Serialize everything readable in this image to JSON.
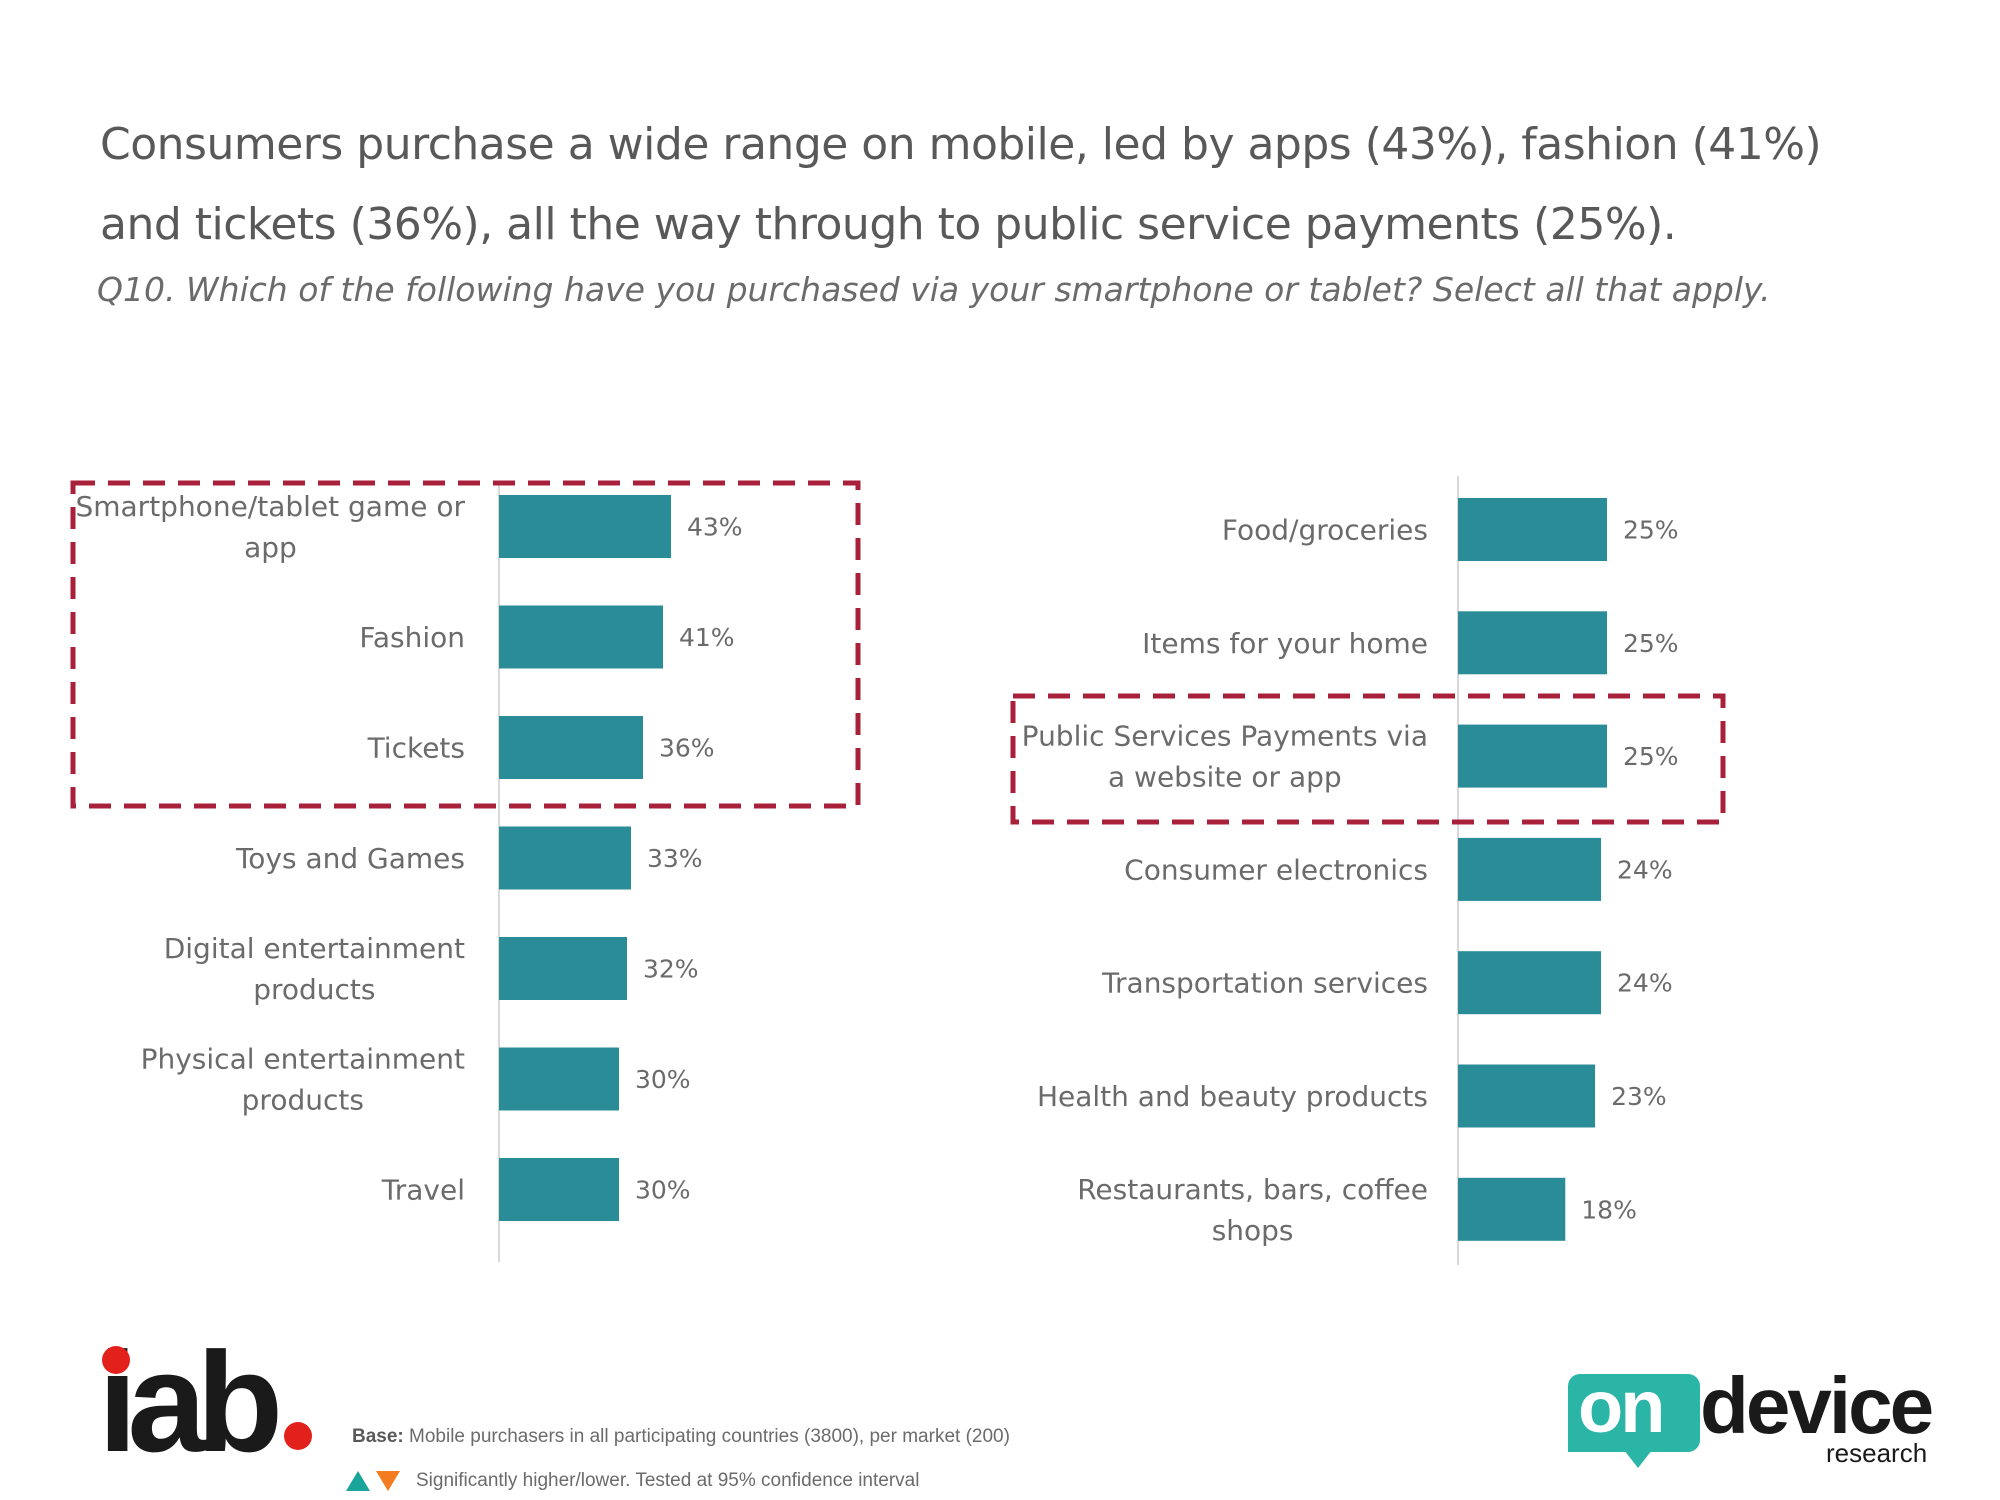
{
  "header": {
    "title_line1": "Consumers purchase a wide range on mobile, led by apps (43%), fashion (41%)",
    "title_line2": "and tickets (36%), all the way through to public service payments (25%).",
    "subtitle": "Q10. Which of the following have you purchased via your smartphone or tablet? Select all that apply."
  },
  "chart_data": [
    {
      "type": "bar",
      "orientation": "horizontal",
      "categories": [
        "Smartphone/tablet game or app",
        "Fashion",
        "Tickets",
        "Toys and Games",
        "Digital entertainment products",
        "Physical entertainment products",
        "Travel"
      ],
      "category_lines": [
        [
          "Smartphone/tablet game or",
          "app"
        ],
        [
          "Fashion"
        ],
        [
          "Tickets"
        ],
        [
          "Toys and Games"
        ],
        [
          "Digital entertainment",
          "products"
        ],
        [
          "Physical entertainment",
          "products"
        ],
        [
          "Travel"
        ]
      ],
      "values": [
        43,
        41,
        36,
        33,
        32,
        30,
        30
      ],
      "data_labels": [
        "43%",
        "41%",
        "36%",
        "33%",
        "32%",
        "30%",
        "30%"
      ],
      "highlighted": [
        "Smartphone/tablet game or app",
        "Fashion",
        "Tickets"
      ],
      "unit": "%",
      "grid": false
    },
    {
      "type": "bar",
      "orientation": "horizontal",
      "categories": [
        "Food/groceries",
        "Items for your home",
        "Public Services Payments via a website or app",
        "Consumer electronics",
        "Transportation services",
        "Health and beauty products",
        "Restaurants, bars, coffee shops"
      ],
      "category_lines": [
        [
          "Food/groceries"
        ],
        [
          "Items for your home"
        ],
        [
          "Public Services Payments via",
          "a website or app"
        ],
        [
          "Consumer electronics"
        ],
        [
          "Transportation services"
        ],
        [
          "Health and beauty products"
        ],
        [
          "Restaurants, bars, coffee",
          "shops"
        ]
      ],
      "values": [
        25,
        25,
        25,
        24,
        24,
        23,
        18
      ],
      "data_labels": [
        "25%",
        "25%",
        "25%",
        "24%",
        "24%",
        "23%",
        "18%"
      ],
      "highlighted": [
        "Public Services Payments via a website or app"
      ],
      "unit": "%",
      "grid": false
    }
  ],
  "colors": {
    "bar": "#2a8c97",
    "highlight_box": "#a8203a",
    "text": "#595959",
    "up_marker": "#1aa59a",
    "down_marker": "#f47c20"
  },
  "footer": {
    "base_label": "Base:",
    "base_text": " Mobile purchasers in all participating countries (3800), per market (200)",
    "significance_text": "Significantly higher/lower. Tested at 95% confidence interval"
  },
  "logos": {
    "iab": "iab",
    "ondevice_on": "on",
    "ondevice_device": "device",
    "ondevice_research": "research"
  }
}
